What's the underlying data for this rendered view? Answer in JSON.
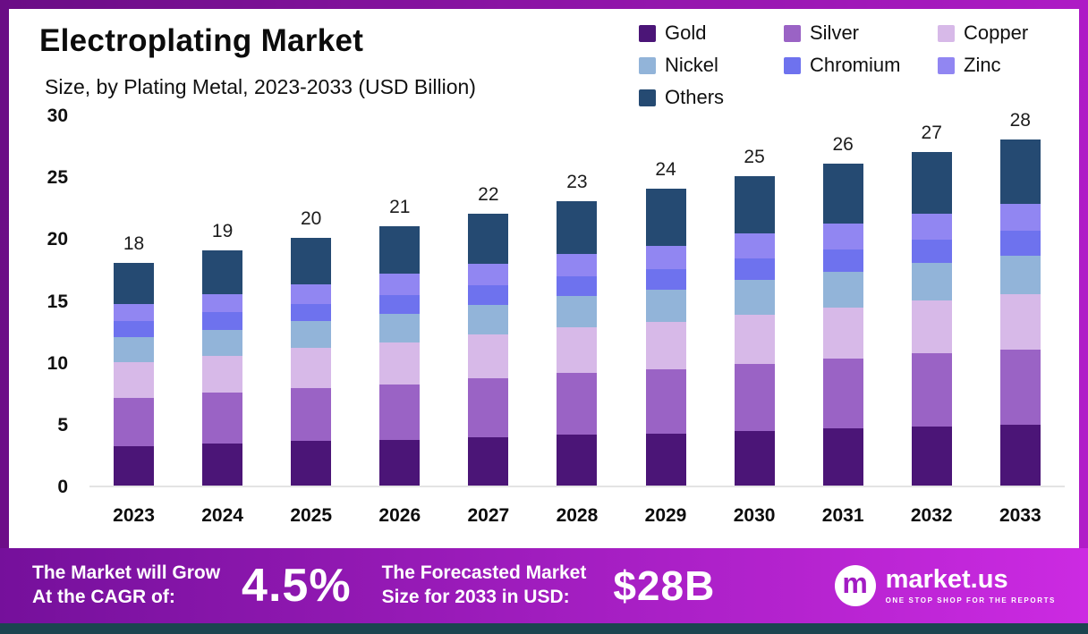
{
  "header": {
    "title": "Electroplating Market",
    "subtitle": "Size, by Plating Metal, 2023-2033 (USD Billion)"
  },
  "chart_data": {
    "type": "bar",
    "subtype": "stacked",
    "title": "Electroplating Market Size, by Plating Metal, 2023-2033 (USD Billion)",
    "unit": "USD Billion",
    "grid": false,
    "legend_position": "top-right",
    "categories": [
      "2023",
      "2024",
      "2025",
      "2026",
      "2027",
      "2028",
      "2029",
      "2030",
      "2031",
      "2032",
      "2033"
    ],
    "totals": [
      18,
      19,
      20,
      21,
      22,
      23,
      24,
      25,
      26,
      27,
      28
    ],
    "series": [
      {
        "name": "Gold",
        "color": "#4b1577",
        "values": [
          3.2,
          3.4,
          3.6,
          3.7,
          3.9,
          4.1,
          4.2,
          4.4,
          4.6,
          4.8,
          4.9
        ]
      },
      {
        "name": "Silver",
        "color": "#9a63c5",
        "values": [
          3.9,
          4.1,
          4.3,
          4.5,
          4.8,
          5.0,
          5.2,
          5.4,
          5.7,
          5.9,
          6.1
        ]
      },
      {
        "name": "Copper",
        "color": "#d7b9e8",
        "values": [
          2.9,
          3.0,
          3.2,
          3.4,
          3.5,
          3.7,
          3.8,
          4.0,
          4.1,
          4.3,
          4.5
        ]
      },
      {
        "name": "Nickel",
        "color": "#92b4d9",
        "values": [
          2.0,
          2.1,
          2.2,
          2.3,
          2.4,
          2.5,
          2.6,
          2.8,
          2.9,
          3.0,
          3.1
        ]
      },
      {
        "name": "Chromium",
        "color": "#6e72ee",
        "values": [
          1.3,
          1.4,
          1.4,
          1.5,
          1.6,
          1.6,
          1.7,
          1.8,
          1.8,
          1.9,
          2.0
        ]
      },
      {
        "name": "Zinc",
        "color": "#9186f2",
        "values": [
          1.4,
          1.5,
          1.6,
          1.7,
          1.7,
          1.8,
          1.9,
          2.0,
          2.1,
          2.1,
          2.2
        ]
      },
      {
        "name": "Others",
        "color": "#254a72",
        "values": [
          3.3,
          3.5,
          3.7,
          3.9,
          4.1,
          4.3,
          4.6,
          4.6,
          4.8,
          5.0,
          5.2
        ]
      }
    ],
    "xlabel": "",
    "ylabel": "",
    "ylim": [
      0,
      30
    ],
    "yticks": [
      0,
      5,
      10,
      15,
      20,
      25,
      30
    ]
  },
  "banner": {
    "grow_line1": "The Market will Grow",
    "grow_line2": "At the CAGR of:",
    "cagr_value": "4.5%",
    "forecast_line1": "The Forecasted Market",
    "forecast_line2": "Size for 2033 in USD:",
    "forecast_value": "$28B",
    "brand_name": "market.us",
    "brand_tagline": "ONE STOP SHOP FOR THE REPORTS",
    "brand_icon_letter": "m"
  },
  "colors": {
    "background_gradient_start": "#6a0d85",
    "background_gradient_end": "#b21cc9",
    "banner_gradient_start": "#75109b",
    "banner_gradient_end": "#cc2ae2",
    "bottom_strip": "#1b4450"
  }
}
